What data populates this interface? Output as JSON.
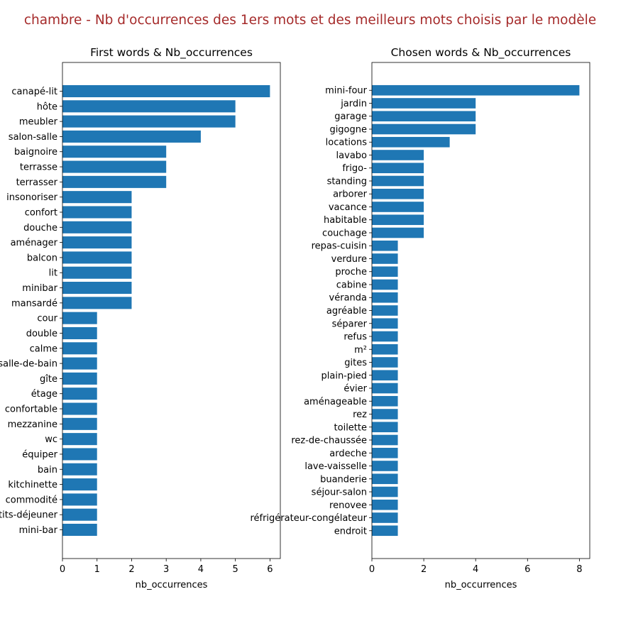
{
  "suptitle": "chambre - Nb d'occurrences des 1ers mots et des meilleurs mots choisis par le modèle",
  "colors": {
    "bar": "#1f77b4",
    "suptitle": "#a52a2a",
    "axis": "#000000"
  },
  "chart_data": [
    {
      "type": "bar",
      "orientation": "horizontal",
      "title": "First words & Nb_occurrences",
      "xlabel": "nb_occurrences",
      "ylabel": "",
      "xlim": [
        0,
        6.3
      ],
      "xticks": [
        0,
        1,
        2,
        3,
        4,
        5,
        6
      ],
      "grid": false,
      "categories": [
        "canapé-lit",
        "hôte",
        "meubler",
        "salon-salle",
        "baignoire",
        "terrasse",
        "terrasser",
        "insonoriser",
        "confort",
        "douche",
        "aménager",
        "balcon",
        "lit",
        "minibar",
        "mansardé",
        "cour",
        "double",
        "calme",
        "salle-de-bain",
        "gîte",
        "étage",
        "confortable",
        "mezzanine",
        "wc",
        "équiper",
        "bain",
        "kitchinette",
        "commodité",
        "petits-déjeuner",
        "mini-bar"
      ],
      "values": [
        6,
        5,
        5,
        4,
        3,
        3,
        3,
        2,
        2,
        2,
        2,
        2,
        2,
        2,
        2,
        1,
        1,
        1,
        1,
        1,
        1,
        1,
        1,
        1,
        1,
        1,
        1,
        1,
        1,
        1
      ]
    },
    {
      "type": "bar",
      "orientation": "horizontal",
      "title": "Chosen words & Nb_occurrences",
      "xlabel": "nb_occurrences",
      "ylabel": "",
      "xlim": [
        0,
        8.4
      ],
      "xticks": [
        0,
        2,
        4,
        6,
        8
      ],
      "grid": false,
      "categories": [
        "mini-four",
        "jardin",
        "garage",
        "gigogne",
        "locations",
        "lavabo",
        "frigo-",
        "standing",
        "arborer",
        "vacance",
        "habitable",
        "couchage",
        "repas-cuisin",
        "verdure",
        "proche",
        "cabine",
        "véranda",
        "agréable",
        "séparer",
        "refus",
        "m²",
        "gites",
        "plain-pied",
        "évier",
        "aménageable",
        "rez",
        "toilette",
        "rez-de-chaussée",
        "ardeche",
        "lave-vaisselle",
        "buanderie",
        "séjour-salon",
        "renovee",
        "réfrigérateur-congélateur",
        "endroit"
      ],
      "values": [
        8,
        4,
        4,
        4,
        3,
        2,
        2,
        2,
        2,
        2,
        2,
        2,
        1,
        1,
        1,
        1,
        1,
        1,
        1,
        1,
        1,
        1,
        1,
        1,
        1,
        1,
        1,
        1,
        1,
        1,
        1,
        1,
        1,
        1,
        1
      ]
    }
  ]
}
